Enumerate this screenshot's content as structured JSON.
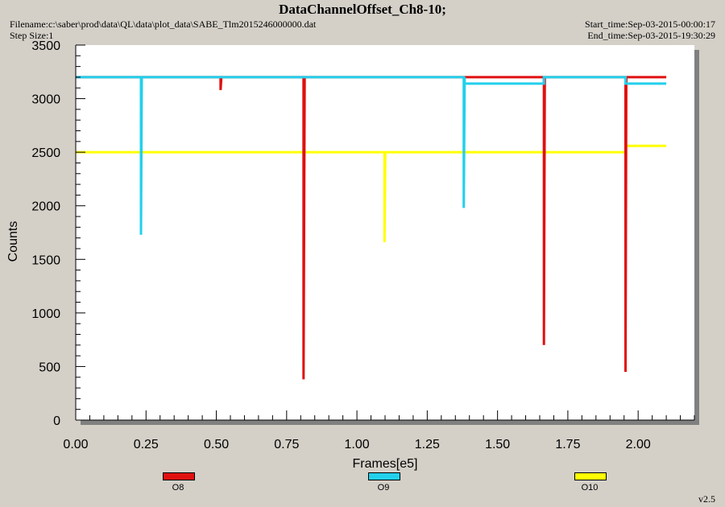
{
  "header": {
    "title": "DataChannelOffset_Ch8-10;",
    "filename": "Filename:c:\\saber\\prod\\data\\QL\\data\\plot_data\\SABE_Tlm2015246000000.dat",
    "step_size": "Step Size:1",
    "start_time": "Start_time:Sep-03-2015-00:00:17",
    "end_time": "End_time:Sep-03-2015-19:30:29"
  },
  "version": "v2.5",
  "chart_data": {
    "type": "line",
    "title": "DataChannelOffset_Ch8-10;",
    "xlabel": "Frames[e5]",
    "ylabel": "Counts",
    "xlim": [
      0,
      2.2
    ],
    "ylim": [
      0,
      3500
    ],
    "xticks": [
      "0.00",
      "0.25",
      "0.50",
      "0.75",
      "1.00",
      "1.25",
      "1.50",
      "1.75",
      "2.00"
    ],
    "yticks": [
      "0",
      "500",
      "1000",
      "1500",
      "2000",
      "2500",
      "3000",
      "3500"
    ],
    "grid": false,
    "legend_position": "bottom",
    "series": [
      {
        "name": "O8",
        "color": "#e01010",
        "x": [
          0,
          0.515,
          0.515,
          0.518,
          0.81,
          0.81,
          0.814,
          1.665,
          1.665,
          1.668,
          1.955,
          1.955,
          1.958,
          2.1
        ],
        "y": [
          3200,
          3200,
          3080,
          3200,
          3200,
          380,
          3200,
          3200,
          700,
          3200,
          3200,
          450,
          3200,
          3200
        ]
      },
      {
        "name": "O9",
        "color": "#22d0ec",
        "x": [
          0,
          0.232,
          0.232,
          0.235,
          1.38,
          1.38,
          1.383,
          1.383,
          1.665,
          1.665,
          1.668,
          1.955,
          1.955,
          1.958,
          2.1
        ],
        "y": [
          3200,
          3200,
          1730,
          3200,
          3200,
          1980,
          3200,
          3140,
          3140,
          3200,
          3200,
          3200,
          3140,
          3140,
          3140
        ]
      },
      {
        "name": "O10",
        "color": "#ffff00",
        "x": [
          0,
          1.098,
          1.098,
          1.101,
          1.955,
          1.958,
          2.1
        ],
        "y": [
          2500,
          2500,
          1660,
          2500,
          2500,
          2560,
          2560
        ]
      }
    ]
  }
}
